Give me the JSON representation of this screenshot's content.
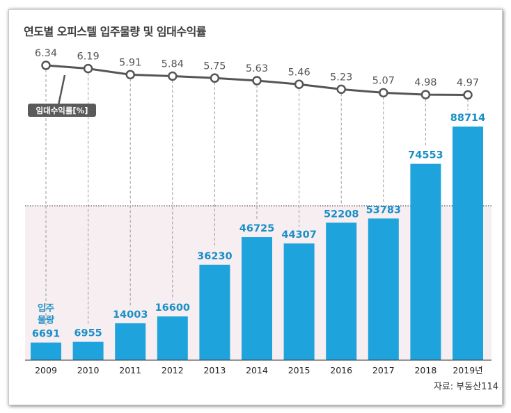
{
  "title": "연도별 오피스텔 입주물량 및 임대수익률",
  "source": "자료: 부동산114",
  "colors": {
    "bar": "#1ea3dc",
    "bar_label": "#1a8fc7",
    "line": "#555555",
    "pink_bg": "#f6eef1",
    "line_label": "#555555"
  },
  "chart_data": [
    {
      "type": "line",
      "label": "임대수익률[%]",
      "categories": [
        "2009",
        "2010",
        "2011",
        "2012",
        "2013",
        "2014",
        "2015",
        "2016",
        "2017",
        "2018",
        "2019년"
      ],
      "values": [
        6.34,
        6.19,
        5.91,
        5.84,
        5.75,
        5.63,
        5.46,
        5.23,
        5.07,
        4.98,
        4.97
      ],
      "value_labels": [
        "6.34",
        "6.19",
        "5.91",
        "5.84",
        "5.75",
        "5.63",
        "5.46",
        "5.23",
        "5.07",
        "4.98",
        "4.97"
      ]
    },
    {
      "type": "bar",
      "label": "입주물량",
      "categories": [
        "2009",
        "2010",
        "2011",
        "2012",
        "2013",
        "2014",
        "2015",
        "2016",
        "2017",
        "2018",
        "2019년"
      ],
      "values": [
        6691,
        6955,
        14003,
        16600,
        36230,
        46725,
        44307,
        52208,
        53783,
        74553,
        88714
      ],
      "value_labels": [
        "6691",
        "6955",
        "14003",
        "16600",
        "36230",
        "46725",
        "44307",
        "52208",
        "53783",
        "74553",
        "88714"
      ]
    }
  ]
}
